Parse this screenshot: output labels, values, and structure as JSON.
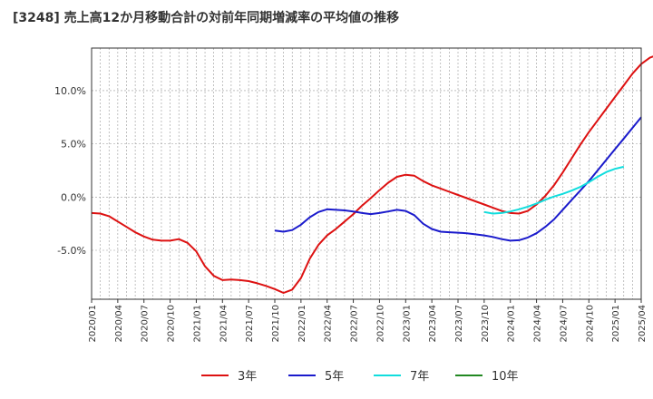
{
  "chart_data": {
    "type": "line",
    "title": "[3248]  売上高12か月移動合計の対前年同期増減率の平均値の推移",
    "xlabel": "",
    "ylabel": "",
    "ylim": [
      -9.6,
      14.0
    ],
    "y_ticks": [
      10,
      5,
      0,
      -5
    ],
    "y_tick_labels": [
      "10.0%",
      "5.0%",
      "0.0%",
      "-5.0%"
    ],
    "x_tick_labels": [
      "2020/01",
      "2020/04",
      "2020/07",
      "2020/10",
      "2021/01",
      "2021/04",
      "2021/07",
      "2021/10",
      "2022/01",
      "2022/04",
      "2022/07",
      "2022/10",
      "2023/01",
      "2023/04",
      "2023/07",
      "2023/10",
      "2024/01",
      "2024/04",
      "2024/07",
      "2024/10",
      "2025/01",
      "2025/04"
    ],
    "x_start": "2020/01",
    "x_end": "2025/04",
    "grid": true,
    "legend_position": "bottom",
    "series": [
      {
        "name": "3年",
        "color": "#dd1111",
        "start": "2020/01",
        "values": [
          -1.5,
          -1.55,
          -1.8,
          -2.3,
          -2.8,
          -3.3,
          -3.7,
          -4.0,
          -4.1,
          -4.1,
          -3.95,
          -4.3,
          -5.1,
          -6.5,
          -7.4,
          -7.8,
          -7.75,
          -7.8,
          -7.9,
          -8.1,
          -8.35,
          -8.65,
          -9.0,
          -8.7,
          -7.6,
          -5.8,
          -4.5,
          -3.6,
          -3.0,
          -2.3,
          -1.6,
          -0.8,
          -0.1,
          0.65,
          1.35,
          1.9,
          2.1,
          2.0,
          1.5,
          1.1,
          0.8,
          0.5,
          0.2,
          -0.1,
          -0.4,
          -0.7,
          -1.0,
          -1.3,
          -1.5,
          -1.55,
          -1.3,
          -0.7,
          0.1,
          1.1,
          2.3,
          3.6,
          4.9,
          6.1,
          7.2,
          8.3,
          9.4,
          10.5,
          11.6,
          12.5,
          13.1,
          13.4
        ]
      },
      {
        "name": "5年",
        "color": "#1a1acc",
        "start": "2021/10",
        "values": [
          -3.15,
          -3.25,
          -3.1,
          -2.6,
          -1.9,
          -1.4,
          -1.15,
          -1.2,
          -1.25,
          -1.35,
          -1.5,
          -1.6,
          -1.5,
          -1.35,
          -1.2,
          -1.3,
          -1.7,
          -2.5,
          -3.0,
          -3.25,
          -3.3,
          -3.35,
          -3.4,
          -3.5,
          -3.6,
          -3.75,
          -3.95,
          -4.1,
          -4.05,
          -3.8,
          -3.4,
          -2.8,
          -2.1,
          -1.2,
          -0.3,
          0.6,
          1.5,
          2.5,
          3.5,
          4.5,
          5.5,
          6.5,
          7.5
        ]
      },
      {
        "name": "7年",
        "color": "#11dddd",
        "start": "2023/10",
        "values": [
          -1.4,
          -1.55,
          -1.5,
          -1.35,
          -1.15,
          -0.9,
          -0.6,
          -0.25,
          0.05,
          0.3,
          0.6,
          0.95,
          1.4,
          1.9,
          2.35,
          2.65,
          2.85
        ]
      },
      {
        "name": "10年",
        "color": "#228822",
        "start": "",
        "values": []
      }
    ]
  }
}
